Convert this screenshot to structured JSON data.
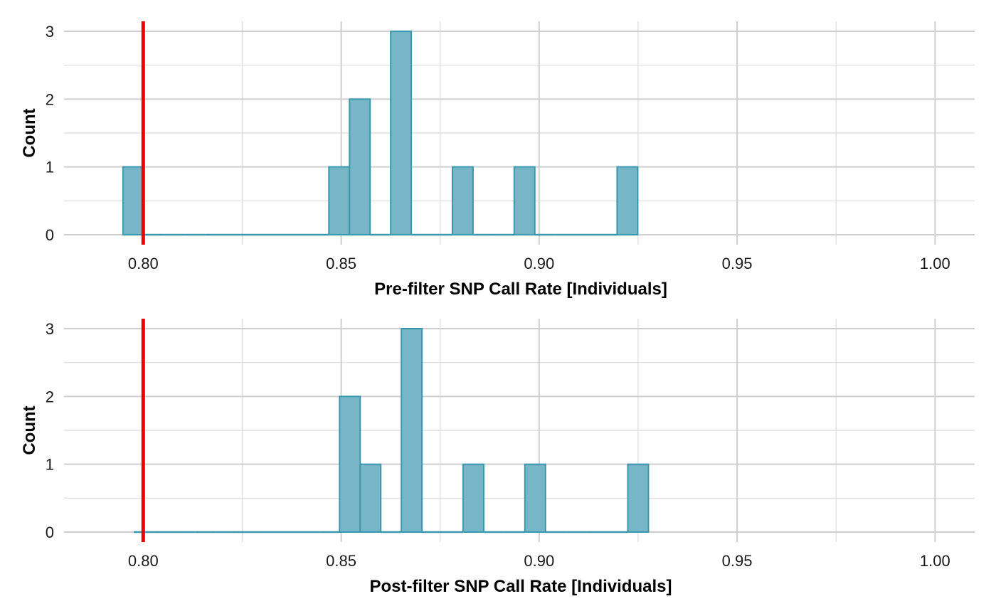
{
  "chart_data": [
    {
      "type": "bar",
      "subtype": "histogram",
      "xlabel": "Pre-filter SNP Call Rate [Individuals]",
      "ylabel": "Count",
      "xlim": [
        0.78,
        1.01
      ],
      "ylim": [
        0,
        3
      ],
      "x_ticks": [
        "0.80",
        "0.85",
        "0.90",
        "0.95",
        "1.00"
      ],
      "x_tick_values": [
        0.8,
        0.85,
        0.9,
        0.95,
        1.0
      ],
      "y_ticks": [
        "0",
        "1",
        "2",
        "3"
      ],
      "y_tick_values": [
        0,
        1,
        2,
        3
      ],
      "grid": true,
      "bin_width": 0.0052,
      "bins": [
        {
          "x0": 0.7949,
          "x1": 0.8001,
          "count": 1
        },
        {
          "x0": 0.8001,
          "x1": 0.8053,
          "count": 0
        },
        {
          "x0": 0.8053,
          "x1": 0.8105,
          "count": 0
        },
        {
          "x0": 0.8105,
          "x1": 0.8157,
          "count": 0
        },
        {
          "x0": 0.8157,
          "x1": 0.8209,
          "count": 0
        },
        {
          "x0": 0.8209,
          "x1": 0.8261,
          "count": 0
        },
        {
          "x0": 0.8261,
          "x1": 0.8313,
          "count": 0
        },
        {
          "x0": 0.8313,
          "x1": 0.8365,
          "count": 0
        },
        {
          "x0": 0.8365,
          "x1": 0.8417,
          "count": 0
        },
        {
          "x0": 0.8417,
          "x1": 0.8469,
          "count": 0
        },
        {
          "x0": 0.8469,
          "x1": 0.8521,
          "count": 1
        },
        {
          "x0": 0.8521,
          "x1": 0.8573,
          "count": 2
        },
        {
          "x0": 0.8573,
          "x1": 0.8625,
          "count": 0
        },
        {
          "x0": 0.8625,
          "x1": 0.8677,
          "count": 3
        },
        {
          "x0": 0.8677,
          "x1": 0.8729,
          "count": 0
        },
        {
          "x0": 0.8729,
          "x1": 0.8781,
          "count": 0
        },
        {
          "x0": 0.8781,
          "x1": 0.8833,
          "count": 1
        },
        {
          "x0": 0.8833,
          "x1": 0.8885,
          "count": 0
        },
        {
          "x0": 0.8885,
          "x1": 0.8937,
          "count": 0
        },
        {
          "x0": 0.8937,
          "x1": 0.8989,
          "count": 1
        },
        {
          "x0": 0.8989,
          "x1": 0.9041,
          "count": 0
        },
        {
          "x0": 0.9041,
          "x1": 0.9093,
          "count": 0
        },
        {
          "x0": 0.9093,
          "x1": 0.9145,
          "count": 0
        },
        {
          "x0": 0.9145,
          "x1": 0.9197,
          "count": 0
        },
        {
          "x0": 0.9197,
          "x1": 0.9249,
          "count": 1
        }
      ],
      "threshold": 0.8,
      "bar_fill": "#77B6C7",
      "bar_stroke": "#3A97AD",
      "threshold_color": "#EE0000"
    },
    {
      "type": "bar",
      "subtype": "histogram",
      "xlabel": "Post-filter SNP Call Rate [Individuals]",
      "ylabel": "Count",
      "xlim": [
        0.78,
        1.01
      ],
      "ylim": [
        0,
        3
      ],
      "x_ticks": [
        "0.80",
        "0.85",
        "0.90",
        "0.95",
        "1.00"
      ],
      "x_tick_values": [
        0.8,
        0.85,
        0.9,
        0.95,
        1.0
      ],
      "y_ticks": [
        "0",
        "1",
        "2",
        "3"
      ],
      "y_tick_values": [
        0,
        1,
        2,
        3
      ],
      "grid": true,
      "bin_width": 0.0052,
      "bins": [
        {
          "x0": 0.7976,
          "x1": 0.8028,
          "count": 0
        },
        {
          "x0": 0.8028,
          "x1": 0.808,
          "count": 0
        },
        {
          "x0": 0.808,
          "x1": 0.8132,
          "count": 0
        },
        {
          "x0": 0.8132,
          "x1": 0.8184,
          "count": 0
        },
        {
          "x0": 0.8184,
          "x1": 0.8236,
          "count": 0
        },
        {
          "x0": 0.8236,
          "x1": 0.8288,
          "count": 0
        },
        {
          "x0": 0.8288,
          "x1": 0.834,
          "count": 0
        },
        {
          "x0": 0.834,
          "x1": 0.8392,
          "count": 0
        },
        {
          "x0": 0.8392,
          "x1": 0.8444,
          "count": 0
        },
        {
          "x0": 0.8444,
          "x1": 0.8496,
          "count": 0
        },
        {
          "x0": 0.8496,
          "x1": 0.8548,
          "count": 2
        },
        {
          "x0": 0.8548,
          "x1": 0.86,
          "count": 1
        },
        {
          "x0": 0.86,
          "x1": 0.8652,
          "count": 0
        },
        {
          "x0": 0.8652,
          "x1": 0.8704,
          "count": 3
        },
        {
          "x0": 0.8704,
          "x1": 0.8756,
          "count": 0
        },
        {
          "x0": 0.8756,
          "x1": 0.8808,
          "count": 0
        },
        {
          "x0": 0.8808,
          "x1": 0.886,
          "count": 1
        },
        {
          "x0": 0.886,
          "x1": 0.8912,
          "count": 0
        },
        {
          "x0": 0.8912,
          "x1": 0.8964,
          "count": 0
        },
        {
          "x0": 0.8964,
          "x1": 0.9016,
          "count": 1
        },
        {
          "x0": 0.9016,
          "x1": 0.9068,
          "count": 0
        },
        {
          "x0": 0.9068,
          "x1": 0.912,
          "count": 0
        },
        {
          "x0": 0.912,
          "x1": 0.9172,
          "count": 0
        },
        {
          "x0": 0.9172,
          "x1": 0.9224,
          "count": 0
        },
        {
          "x0": 0.9224,
          "x1": 0.9276,
          "count": 1
        }
      ],
      "threshold": 0.8,
      "bar_fill": "#77B6C7",
      "bar_stroke": "#3A97AD",
      "threshold_color": "#EE0000"
    }
  ]
}
